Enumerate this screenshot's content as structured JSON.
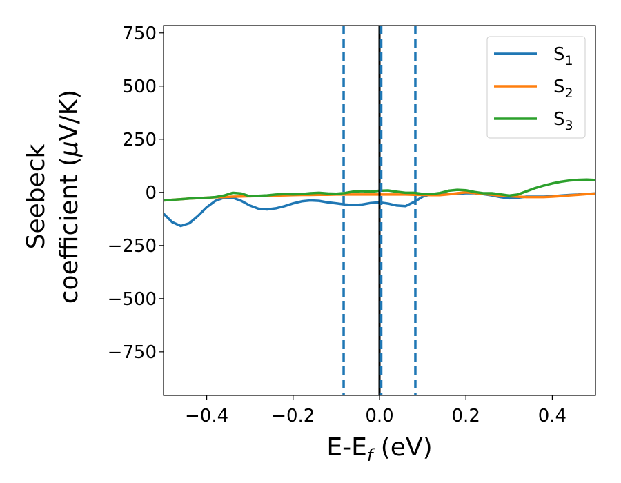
{
  "chart_data": {
    "type": "line",
    "xlabel": "E-E",
    "xlabel_sub": "f",
    "xlabel_suffix": " (eV)",
    "ylabel_line1": "Seebeck",
    "ylabel_line2_pre": "coefficient  (",
    "ylabel_mu": "μ",
    "ylabel_line2_post": "V/K)",
    "xlim": [
      -0.5,
      0.5
    ],
    "ylim": [
      -955,
      785
    ],
    "x_ticks": [
      -0.4,
      -0.2,
      0.0,
      0.2,
      0.4
    ],
    "x_tick_labels": [
      "−0.4",
      "−0.2",
      "0.0",
      "0.2",
      "0.4"
    ],
    "y_ticks": [
      750,
      500,
      250,
      0,
      -250,
      -500,
      -750
    ],
    "y_tick_labels": [
      "750",
      "500",
      "250",
      "0",
      "−250",
      "−500",
      "−750"
    ],
    "grid": false,
    "legend_position": "top-right",
    "vlines": [
      {
        "x": -0.083,
        "style": "dashed",
        "color": "#1f77b4"
      },
      {
        "x": 0.0,
        "style": "solid",
        "color": "#000000"
      },
      {
        "x": 0.004,
        "style": "dashed",
        "color": "#1f77b4"
      },
      {
        "x": 0.083,
        "style": "dashed",
        "color": "#1f77b4"
      }
    ],
    "series": [
      {
        "name": "S",
        "name_sub": "1",
        "color": "#1f77b4",
        "x": [
          -0.5,
          -0.48,
          -0.46,
          -0.44,
          -0.42,
          -0.4,
          -0.38,
          -0.36,
          -0.34,
          -0.32,
          -0.3,
          -0.28,
          -0.26,
          -0.24,
          -0.22,
          -0.2,
          -0.18,
          -0.16,
          -0.14,
          -0.12,
          -0.1,
          -0.08,
          -0.06,
          -0.04,
          -0.02,
          0.0,
          0.02,
          0.04,
          0.06,
          0.08,
          0.1,
          0.12,
          0.14,
          0.16,
          0.18,
          0.2,
          0.22,
          0.24,
          0.26,
          0.28,
          0.3,
          0.32,
          0.34,
          0.36,
          0.38,
          0.4,
          0.42,
          0.44,
          0.46,
          0.48,
          0.5
        ],
        "y": [
          -100,
          -140,
          -158,
          -145,
          -110,
          -70,
          -40,
          -25,
          -25,
          -40,
          -62,
          -77,
          -80,
          -75,
          -65,
          -52,
          -42,
          -38,
          -40,
          -47,
          -52,
          -57,
          -60,
          -57,
          -50,
          -47,
          -53,
          -62,
          -65,
          -45,
          -20,
          -8,
          -8,
          -8,
          -6,
          -4,
          -4,
          -8,
          -14,
          -22,
          -28,
          -25,
          -20,
          -20,
          -20,
          -18,
          -15,
          -12,
          -10,
          -7,
          -5
        ]
      },
      {
        "name": "S",
        "name_sub": "2",
        "color": "#ff7f0e",
        "x": [
          -0.5,
          -0.48,
          -0.46,
          -0.44,
          -0.42,
          -0.4,
          -0.38,
          -0.36,
          -0.34,
          -0.32,
          -0.3,
          -0.28,
          -0.26,
          -0.24,
          -0.22,
          -0.2,
          -0.18,
          -0.16,
          -0.14,
          -0.12,
          -0.1,
          -0.08,
          -0.06,
          -0.04,
          -0.02,
          0.0,
          0.02,
          0.04,
          0.06,
          0.08,
          0.1,
          0.12,
          0.14,
          0.16,
          0.18,
          0.2,
          0.22,
          0.24,
          0.26,
          0.28,
          0.3,
          0.32,
          0.34,
          0.36,
          0.38,
          0.4,
          0.42,
          0.44,
          0.46,
          0.48,
          0.5
        ],
        "y": [
          -38,
          -35,
          -32,
          -29,
          -27,
          -25,
          -23,
          -22,
          -20,
          -19,
          -18,
          -17,
          -16,
          -15,
          -14,
          -13,
          -12,
          -12,
          -11,
          -11,
          -10,
          -10,
          -10,
          -10,
          -10,
          -10,
          -10,
          -10,
          -10,
          -11,
          -12,
          -13,
          -13,
          -9,
          -4,
          0,
          -3,
          -7,
          -11,
          -15,
          -18,
          -20,
          -22,
          -22,
          -22,
          -20,
          -17,
          -14,
          -11,
          -8,
          -5
        ]
      },
      {
        "name": "S",
        "name_sub": "3",
        "color": "#2ca02c",
        "x": [
          -0.5,
          -0.48,
          -0.46,
          -0.44,
          -0.42,
          -0.4,
          -0.38,
          -0.36,
          -0.34,
          -0.32,
          -0.3,
          -0.28,
          -0.26,
          -0.24,
          -0.22,
          -0.2,
          -0.18,
          -0.16,
          -0.14,
          -0.12,
          -0.1,
          -0.08,
          -0.06,
          -0.04,
          -0.02,
          0.0,
          0.02,
          0.04,
          0.06,
          0.08,
          0.1,
          0.12,
          0.14,
          0.16,
          0.18,
          0.2,
          0.22,
          0.24,
          0.26,
          0.28,
          0.3,
          0.32,
          0.34,
          0.36,
          0.38,
          0.4,
          0.42,
          0.44,
          0.46,
          0.48,
          0.5
        ],
        "y": [
          -38,
          -35,
          -32,
          -29,
          -27,
          -25,
          -22,
          -15,
          -2,
          -5,
          -18,
          -16,
          -14,
          -10,
          -8,
          -9,
          -8,
          -4,
          -2,
          -5,
          -6,
          -3,
          4,
          6,
          3,
          8,
          9,
          3,
          -2,
          -2,
          -7,
          -8,
          -3,
          8,
          12,
          10,
          2,
          -4,
          -4,
          -9,
          -15,
          -10,
          5,
          20,
          32,
          42,
          50,
          56,
          59,
          60,
          58
        ]
      }
    ]
  }
}
